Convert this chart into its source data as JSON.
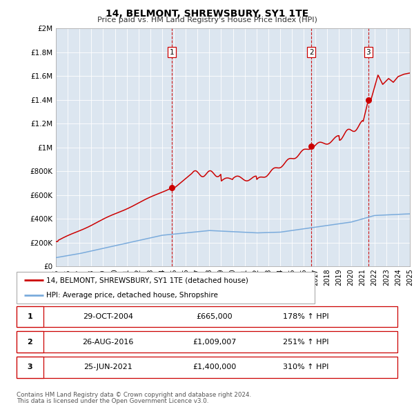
{
  "title": "14, BELMONT, SHREWSBURY, SY1 1TE",
  "subtitle": "Price paid vs. HM Land Registry's House Price Index (HPI)",
  "bg_color": "#dce6f0",
  "line1_color": "#cc0000",
  "line2_color": "#7aabdc",
  "xlim": [
    1995,
    2025
  ],
  "ylim": [
    0,
    2000000
  ],
  "yticks": [
    0,
    200000,
    400000,
    600000,
    800000,
    1000000,
    1200000,
    1400000,
    1600000,
    1800000,
    2000000
  ],
  "ytick_labels": [
    "£0",
    "£200K",
    "£400K",
    "£600K",
    "£800K",
    "£1M",
    "£1.2M",
    "£1.4M",
    "£1.6M",
    "£1.8M",
    "£2M"
  ],
  "xticks": [
    1995,
    1996,
    1997,
    1998,
    1999,
    2000,
    2001,
    2002,
    2003,
    2004,
    2005,
    2006,
    2007,
    2008,
    2009,
    2010,
    2011,
    2012,
    2013,
    2014,
    2015,
    2016,
    2017,
    2018,
    2019,
    2020,
    2021,
    2022,
    2023,
    2024,
    2025
  ],
  "sale1_x": 2004.83,
  "sale1_y": 665000,
  "sale1_label": "1",
  "sale2_x": 2016.65,
  "sale2_y": 1009007,
  "sale2_label": "2",
  "sale3_x": 2021.48,
  "sale3_y": 1400000,
  "sale3_label": "3",
  "legend1_text": "14, BELMONT, SHREWSBURY, SY1 1TE (detached house)",
  "legend2_text": "HPI: Average price, detached house, Shropshire",
  "table_rows": [
    {
      "num": "1",
      "date": "29-OCT-2004",
      "price": "£665,000",
      "hpi": "178% ↑ HPI"
    },
    {
      "num": "2",
      "date": "26-AUG-2016",
      "price": "£1,009,007",
      "hpi": "251% ↑ HPI"
    },
    {
      "num": "3",
      "date": "25-JUN-2021",
      "price": "£1,400,000",
      "hpi": "310% ↑ HPI"
    }
  ],
  "footer1": "Contains HM Land Registry data © Crown copyright and database right 2024.",
  "footer2": "This data is licensed under the Open Government Licence v3.0."
}
